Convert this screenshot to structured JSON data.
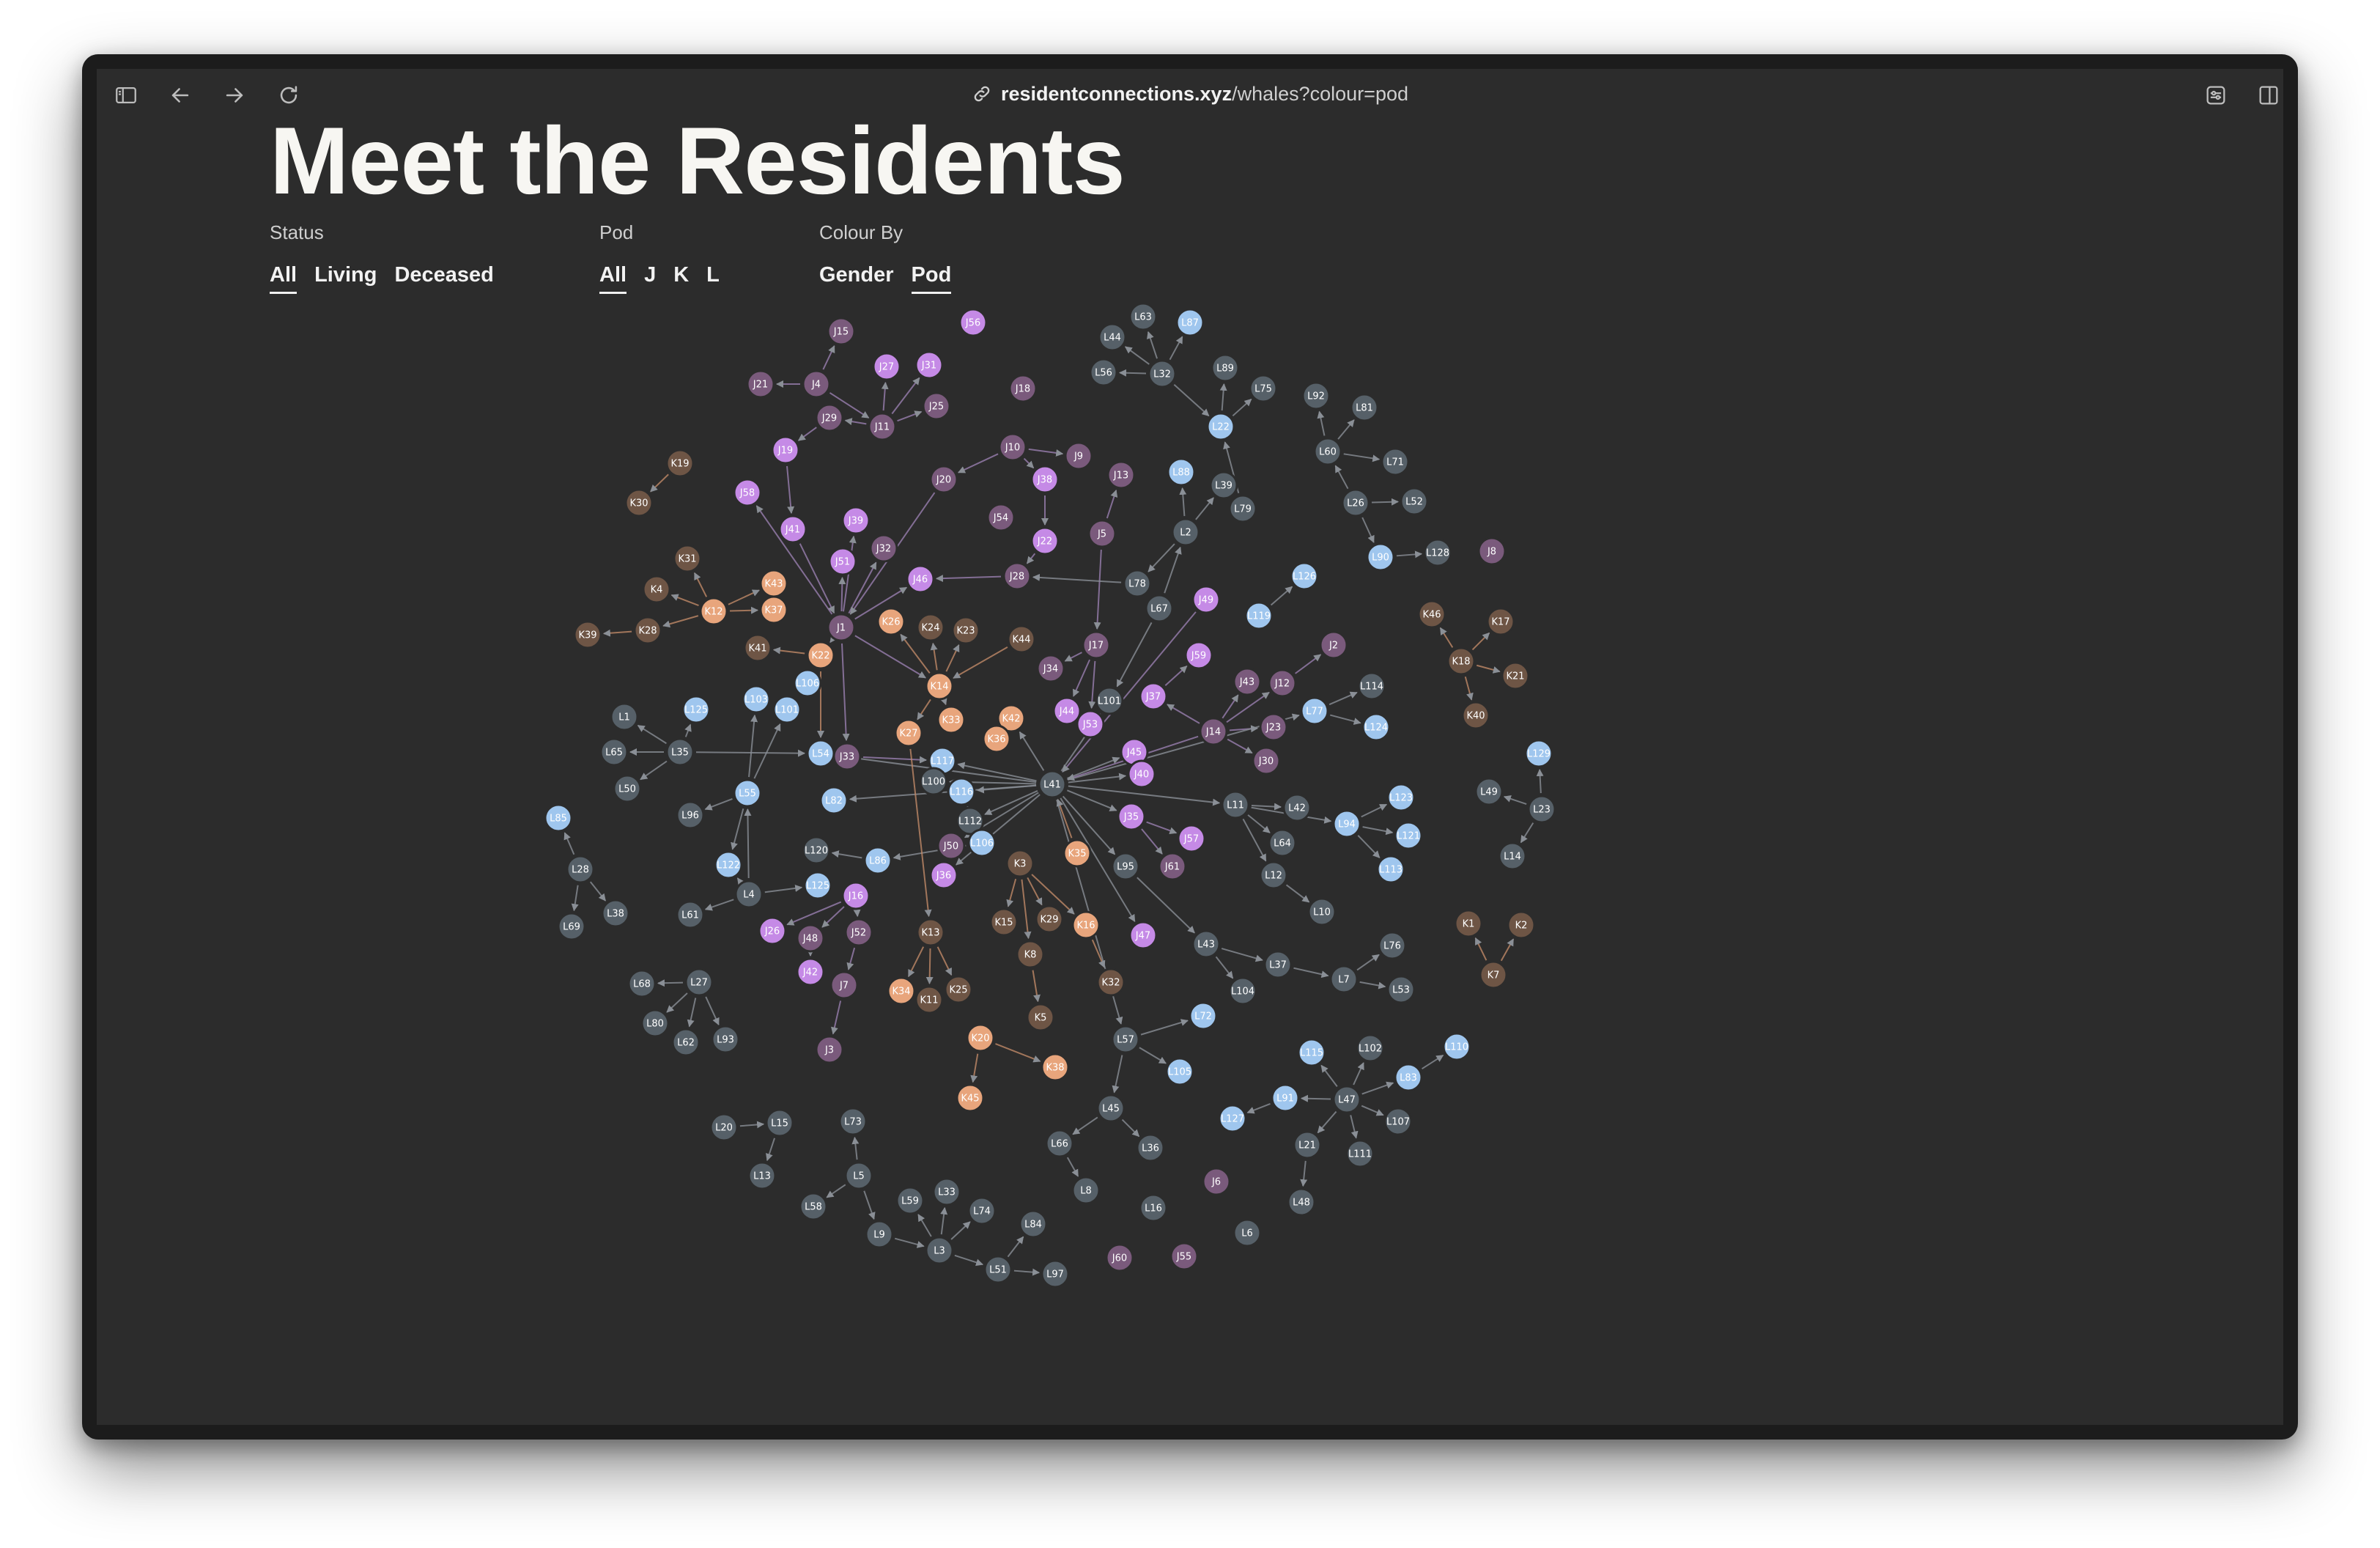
{
  "browser": {
    "url_host": "residentconnections.xyz",
    "url_path": "/whales?colour=pod",
    "icons": [
      "sidebar-icon",
      "back-icon",
      "forward-icon",
      "reload-icon",
      "link-icon",
      "page-settings-icon",
      "split-view-icon"
    ]
  },
  "page": {
    "title": "Meet the Residents"
  },
  "filters": {
    "status": {
      "label": "Status",
      "options": [
        "All",
        "Living",
        "Deceased"
      ],
      "selected": "All"
    },
    "pod": {
      "label": "Pod",
      "options": [
        "All",
        "J",
        "K",
        "L"
      ],
      "selected": "All"
    },
    "colour_by": {
      "label": "Colour By",
      "options": [
        "Gender",
        "Pod"
      ],
      "selected": "Pod"
    }
  },
  "colors": {
    "background": "#2c2c2c",
    "pod_J": "#7a5a7c",
    "pod_J_highlight": "#c58ae6",
    "pod_K": "#6e5545",
    "pod_K_highlight": "#e8a57c",
    "pod_L": "#566068",
    "pod_L_highlight": "#9fc6ee",
    "link": "#8a8f96"
  },
  "graph": {
    "nodes": [
      "J56",
      "J15",
      "J27",
      "J31",
      "J21",
      "J4",
      "J25",
      "J29",
      "J11",
      "J18",
      "J19",
      "J10",
      "J9",
      "J58",
      "J41",
      "J39",
      "J38",
      "J13",
      "J20",
      "J54",
      "J22",
      "J5",
      "J32",
      "J51",
      "J46",
      "J28",
      "J1",
      "J49",
      "J2",
      "J17",
      "J59",
      "J34",
      "J43",
      "J12",
      "J37",
      "J14",
      "J23",
      "J44",
      "J53",
      "J45",
      "J40",
      "J30",
      "J33",
      "J35",
      "J57",
      "J61",
      "J50",
      "J36",
      "J16",
      "J26",
      "J48",
      "J52",
      "J42",
      "J7",
      "J47",
      "J3",
      "J6",
      "J60",
      "J55",
      "J8",
      "K19",
      "K30",
      "K31",
      "K4",
      "K12",
      "K43",
      "K37",
      "K39",
      "K28",
      "K41",
      "K22",
      "K26",
      "K24",
      "K23",
      "K44",
      "K14",
      "K33",
      "K42",
      "K36",
      "K27",
      "K35",
      "K3",
      "K15",
      "K29",
      "K16",
      "K8",
      "K13",
      "K34",
      "K11",
      "K25",
      "K20",
      "K38",
      "K45",
      "K32",
      "K5",
      "K46",
      "K17",
      "K18",
      "K21",
      "K40",
      "K1",
      "K2",
      "K7",
      "L63",
      "L87",
      "L44",
      "L32",
      "L56",
      "L89",
      "L75",
      "L22",
      "L92",
      "L81",
      "L60",
      "L71",
      "L88",
      "L39",
      "L26",
      "L52",
      "L79",
      "L2",
      "L90",
      "L128",
      "L78",
      "L126",
      "L67",
      "L119",
      "L1",
      "L125",
      "L103",
      "L101",
      "L106",
      "L65",
      "L35",
      "L50",
      "L54",
      "L117",
      "L100",
      "L55",
      "L82",
      "L96",
      "L116",
      "L41",
      "L101b",
      "L77",
      "L114",
      "L124",
      "L23",
      "L129",
      "L49",
      "L14",
      "L11",
      "L42",
      "L94",
      "L123",
      "L121",
      "L64",
      "L113",
      "L112",
      "L106b",
      "L120",
      "L86",
      "L122",
      "L85",
      "L28",
      "L38",
      "L69",
      "L4",
      "L125b",
      "L61",
      "L95",
      "L12",
      "L10",
      "L43",
      "L104",
      "L37",
      "L7",
      "L76",
      "L53",
      "L68",
      "L27",
      "L80",
      "L62",
      "L93",
      "L72",
      "L57",
      "L105",
      "L115",
      "L102",
      "L110",
      "L83",
      "L47",
      "L107",
      "L91",
      "L127",
      "L21",
      "L111",
      "L45",
      "L66",
      "L36",
      "L8",
      "L48",
      "L20",
      "L15",
      "L13",
      "L73",
      "L5",
      "L58",
      "L59",
      "L33",
      "L74",
      "L9",
      "L3",
      "L84",
      "L51",
      "L97",
      "L16",
      "L6"
    ]
  }
}
